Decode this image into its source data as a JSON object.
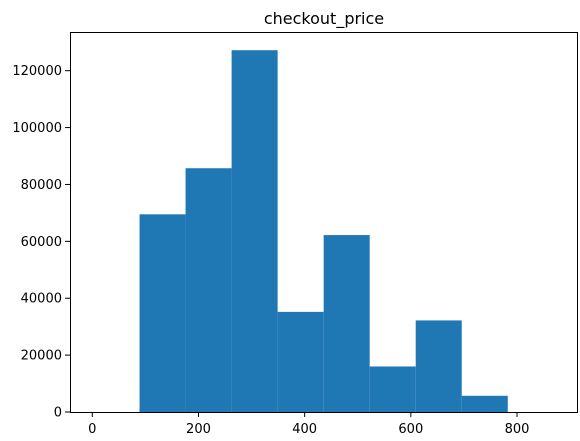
{
  "chart_data": {
    "type": "bar",
    "title": "checkout_price",
    "xlabel": "",
    "ylabel": "",
    "bins": [
      {
        "x0": 89.0,
        "x1": 175.7,
        "count": 69500
      },
      {
        "x0": 175.7,
        "x1": 262.4,
        "count": 85700
      },
      {
        "x0": 262.4,
        "x1": 349.1,
        "count": 127200
      },
      {
        "x0": 349.1,
        "x1": 435.8,
        "count": 35200
      },
      {
        "x0": 435.8,
        "x1": 522.5,
        "count": 62200
      },
      {
        "x0": 522.5,
        "x1": 609.2,
        "count": 16000
      },
      {
        "x0": 609.2,
        "x1": 695.9,
        "count": 32200
      },
      {
        "x0": 695.9,
        "x1": 782.6,
        "count": 5700
      },
      {
        "x0": 782.6,
        "x1": 869.3,
        "count": 0
      }
    ],
    "xlim": [
      -42,
      913
    ],
    "ylim": [
      0,
      133600
    ],
    "xticks": [
      0,
      200,
      400,
      600,
      800
    ],
    "xtick_labels": [
      "0",
      "200",
      "400",
      "600",
      "800"
    ],
    "yticks": [
      0,
      20000,
      40000,
      60000,
      80000,
      100000,
      120000
    ],
    "ytick_labels": [
      "0",
      "20000",
      "40000",
      "60000",
      "80000",
      "100000",
      "120000"
    ],
    "grid": false,
    "bar_color": "#1f77b4"
  }
}
